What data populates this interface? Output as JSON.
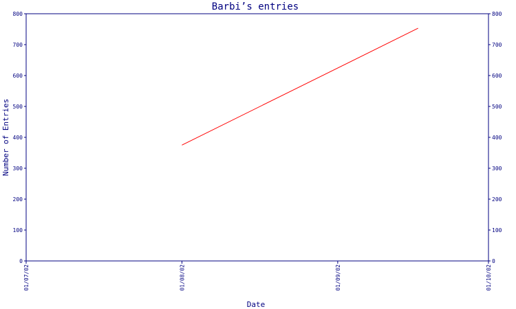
{
  "chart_data": {
    "type": "line",
    "title": "Barbi’s entries",
    "xlabel": "Date",
    "ylabel": "Number of Entries",
    "x_ticks": [
      "01/07/02",
      "01/08/02",
      "01/09/02",
      "01/10/02"
    ],
    "y_ticks": [
      "0",
      "100",
      "200",
      "300",
      "400",
      "500",
      "600",
      "700",
      "800"
    ],
    "ylim": [
      0,
      800
    ],
    "grid": false,
    "series": [
      {
        "color": "#ff0000",
        "points": [
          {
            "x": "01/08/02",
            "y": 375
          },
          {
            "x": "2002-09-17",
            "y": 753
          }
        ]
      }
    ],
    "colors": {
      "axis": "#000080",
      "line": "#ff0000",
      "background": "#ffffff"
    }
  }
}
